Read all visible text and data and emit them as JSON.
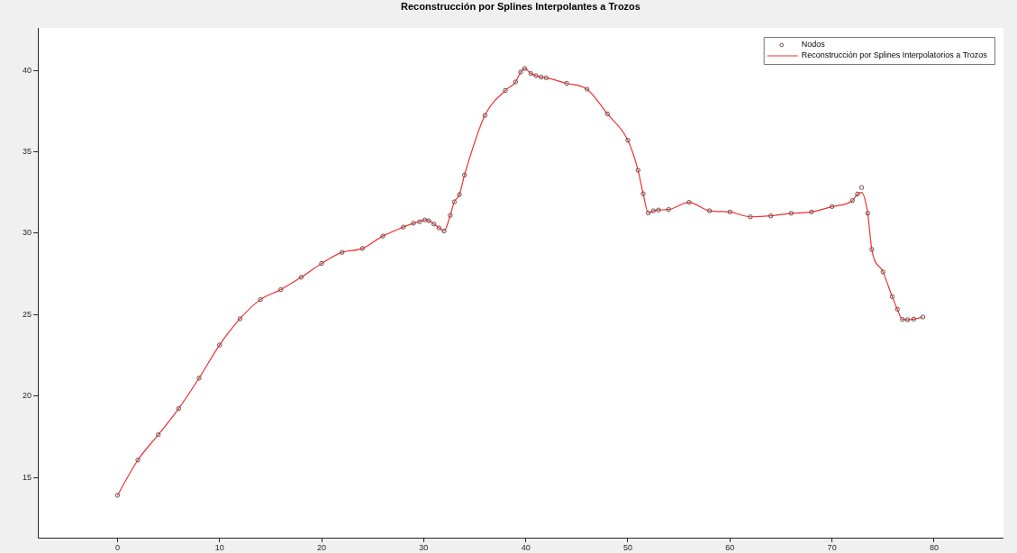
{
  "chart_data": {
    "type": "line",
    "title": "Reconstrucción por Splines Interpolantes a Trozos",
    "xlim": [
      -7.8,
      86.8
    ],
    "xticks": [
      0,
      10,
      20,
      30,
      40,
      50,
      60,
      70,
      80
    ],
    "ylim": [
      11.3,
      42.6
    ],
    "yticks": [
      15,
      20,
      25,
      30,
      35,
      40
    ],
    "grid": false,
    "legend": "top right",
    "series": [
      {
        "name": "Nodos",
        "type": "scatter",
        "marker": "circle",
        "color": "#6b4f4f",
        "x": [
          0,
          2,
          4,
          6,
          8,
          10,
          12,
          14,
          16,
          18,
          20,
          22,
          24,
          26,
          28,
          29,
          29.6,
          30.1,
          30.5,
          31,
          31.5,
          32,
          32.6,
          33,
          33.5,
          34,
          36,
          38,
          39,
          39.5,
          39.9,
          40.5,
          41,
          41.5,
          42,
          44,
          46,
          48,
          50,
          51,
          51.5,
          52,
          52.5,
          53,
          54,
          56,
          58,
          60,
          62,
          64,
          66,
          68,
          70,
          72,
          72.5,
          72.9,
          73.5,
          73.9,
          75,
          75.9,
          76.4,
          76.9,
          77.4,
          78,
          78.9
        ],
        "values": [
          13.9,
          16.07,
          17.62,
          19.23,
          21.1,
          23.13,
          24.74,
          25.92,
          26.53,
          27.29,
          28.14,
          28.82,
          29.06,
          29.82,
          30.37,
          30.61,
          30.7,
          30.81,
          30.76,
          30.56,
          30.32,
          30.13,
          31.09,
          31.92,
          32.37,
          33.57,
          37.23,
          38.76,
          39.28,
          39.89,
          40.11,
          39.8,
          39.67,
          39.58,
          39.54,
          39.2,
          38.84,
          37.32,
          35.7,
          33.86,
          32.42,
          31.24,
          31.37,
          31.42,
          31.45,
          31.89,
          31.37,
          31.3,
          31.0,
          31.06,
          31.22,
          31.3,
          31.63,
          32.0,
          32.4,
          32.8,
          31.22,
          29.0,
          27.62,
          26.1,
          25.33,
          24.7,
          24.68,
          24.72,
          24.85
        ]
      },
      {
        "name": "Reconstrucción por Splines Interpolatorios a Trozos",
        "type": "line",
        "marker": "none",
        "line_style": "solid",
        "color": "#f03030",
        "x": [
          0,
          2,
          4,
          6,
          8,
          10,
          12,
          14,
          16,
          18,
          20,
          22,
          24,
          26,
          28,
          29,
          29.6,
          30.1,
          30.5,
          31,
          31.5,
          32,
          32.6,
          33,
          33.5,
          34,
          36,
          38,
          39,
          39.5,
          39.9,
          40.5,
          41,
          41.5,
          42,
          44,
          46,
          48,
          50,
          51,
          51.5,
          52,
          52.5,
          53,
          54,
          56,
          58,
          60,
          62,
          64,
          66,
          68,
          70,
          72,
          72.5,
          72.9,
          73.5,
          73.9,
          75,
          75.9,
          76.4,
          76.9,
          77.4,
          78,
          78.9
        ],
        "values": [
          13.9,
          16.07,
          17.62,
          19.23,
          21.1,
          23.13,
          24.74,
          25.92,
          26.53,
          27.29,
          28.14,
          28.82,
          29.06,
          29.82,
          30.37,
          30.61,
          30.7,
          30.81,
          30.76,
          30.56,
          30.32,
          30.13,
          31.09,
          31.92,
          32.37,
          33.57,
          37.23,
          38.76,
          39.28,
          39.89,
          40.11,
          39.8,
          39.67,
          39.58,
          39.54,
          39.2,
          38.84,
          37.32,
          35.7,
          33.86,
          32.42,
          31.24,
          31.37,
          31.42,
          31.45,
          31.89,
          31.37,
          31.3,
          31.0,
          31.06,
          31.22,
          31.3,
          31.63,
          32.0,
          32.4,
          32.5,
          31.22,
          29.0,
          27.62,
          26.1,
          25.33,
          24.7,
          24.68,
          24.72,
          24.85
        ]
      }
    ]
  }
}
